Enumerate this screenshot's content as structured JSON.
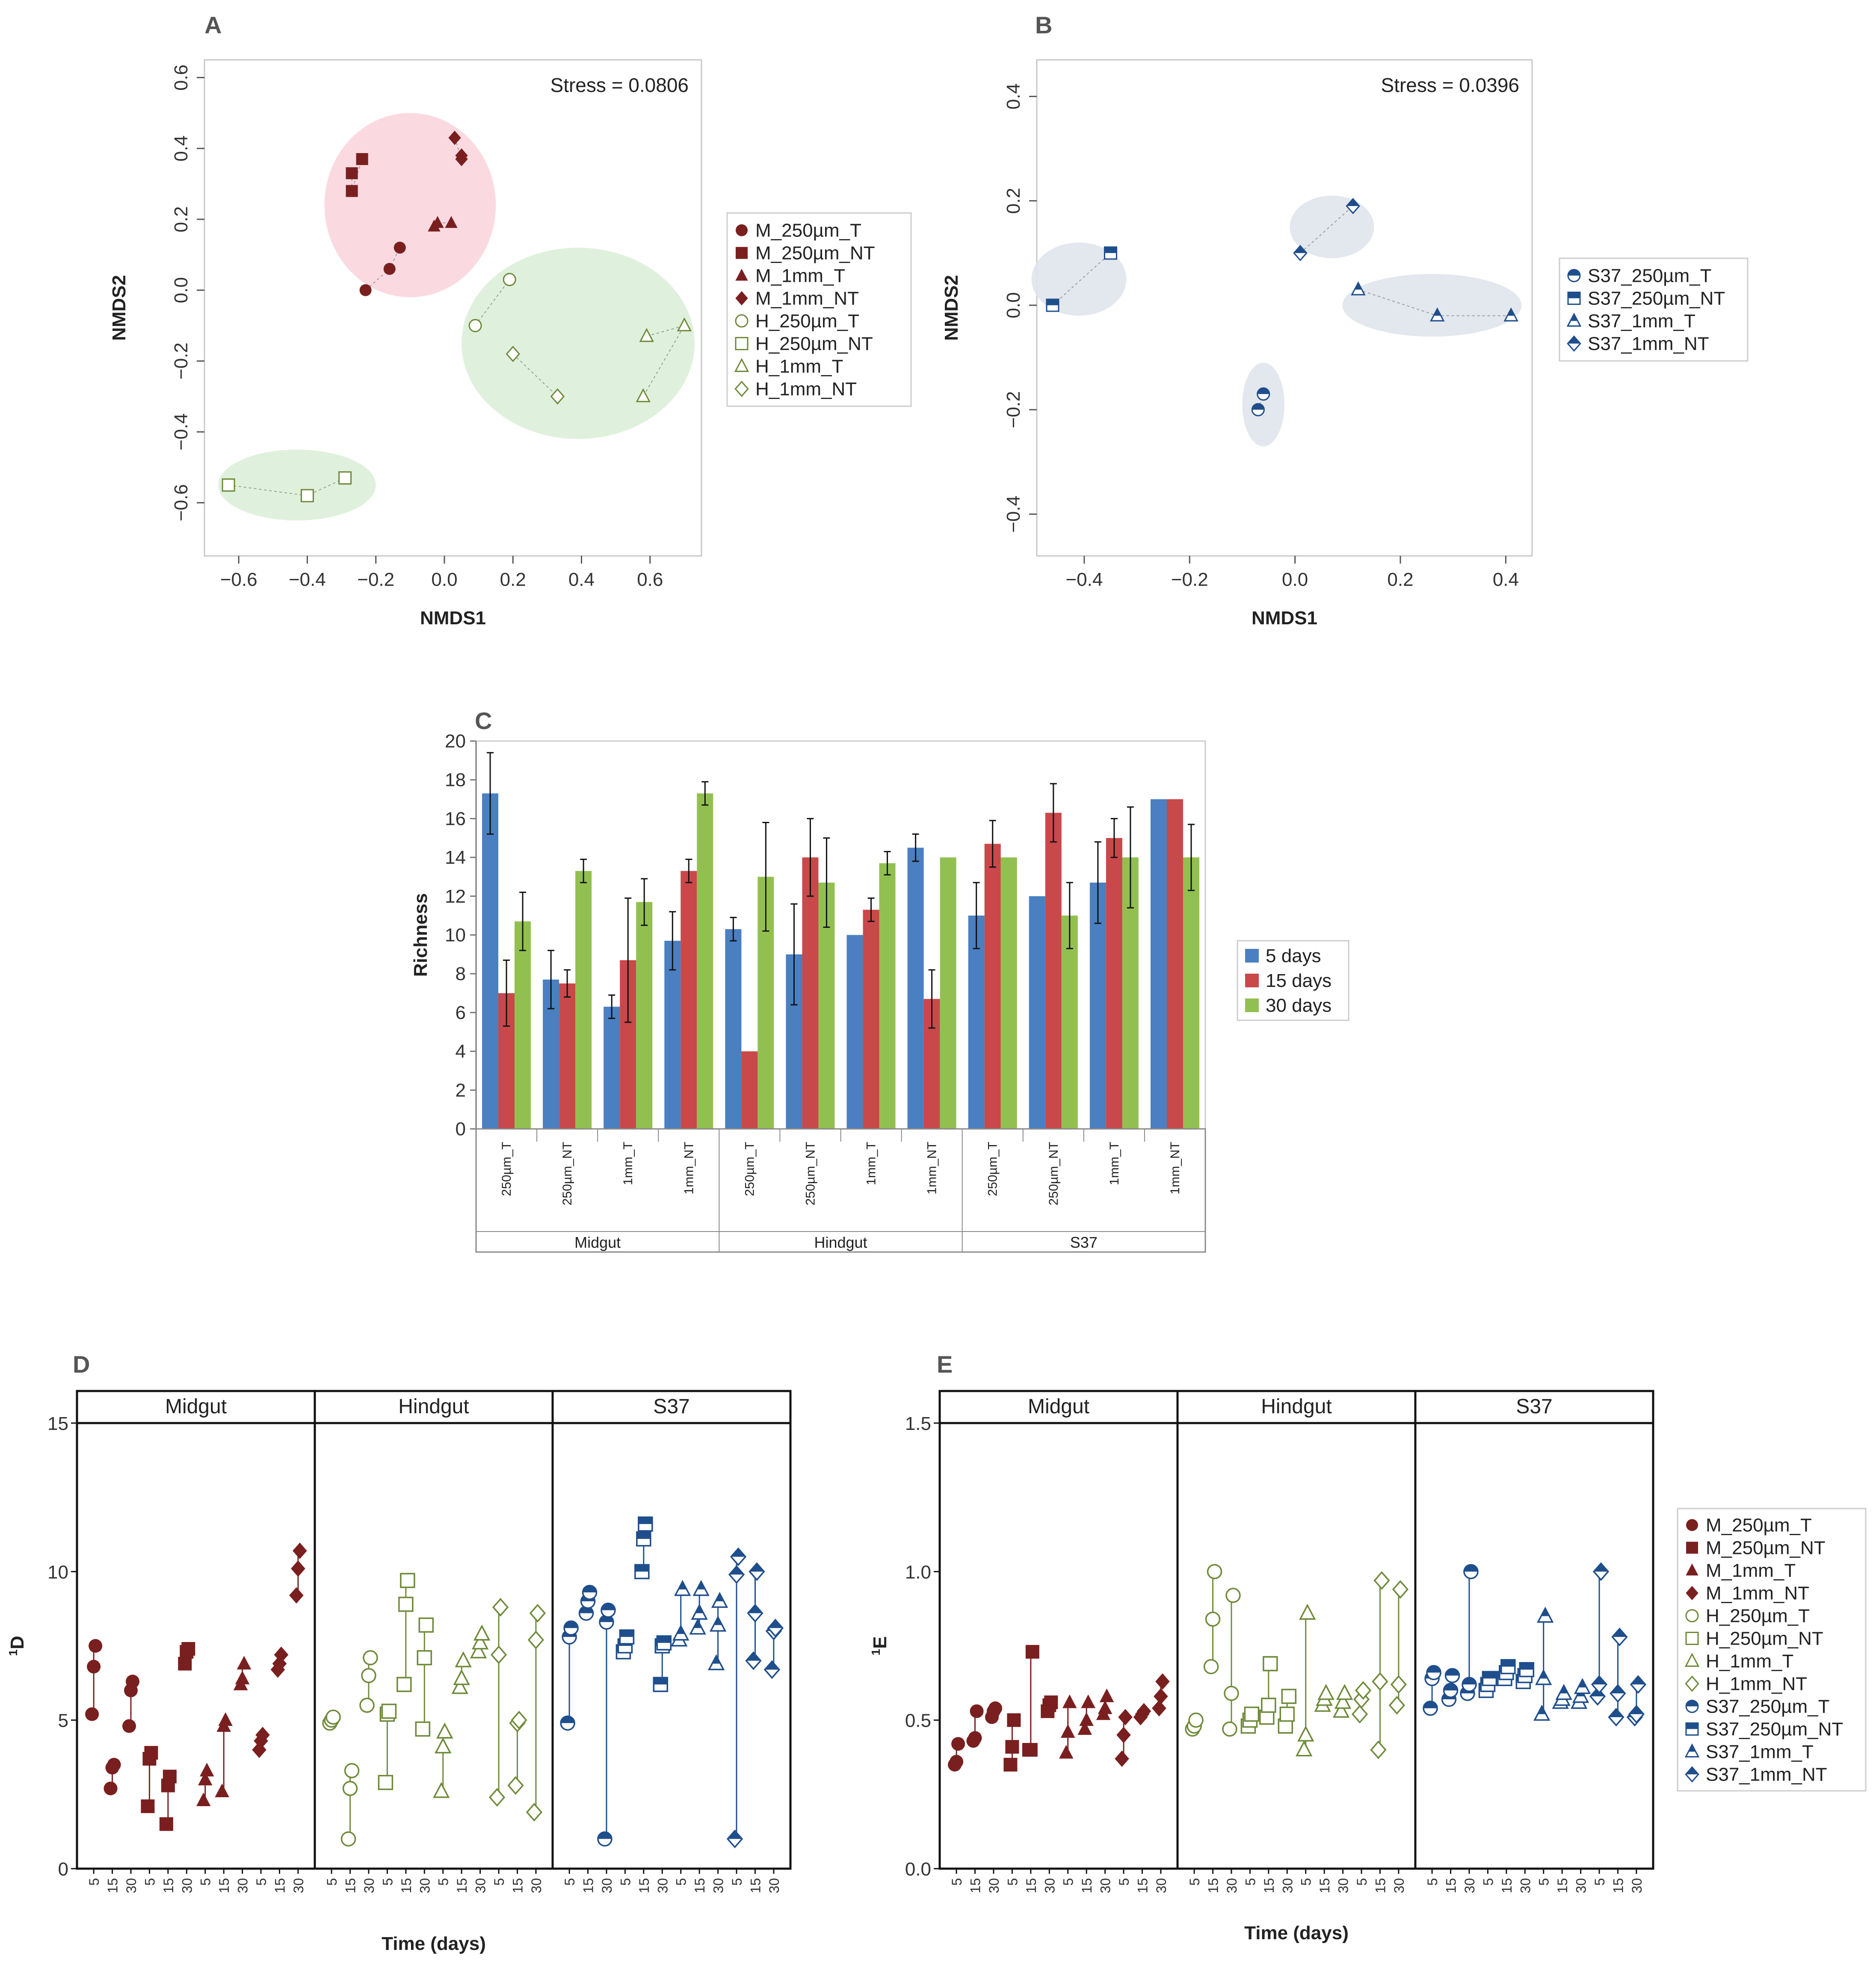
{
  "figure_letters": [
    "A",
    "B",
    "C",
    "D",
    "E"
  ],
  "chart_data": [
    {
      "id": "A",
      "type": "scatter",
      "title": "A",
      "xlabel": "NMDS1",
      "ylabel": "NMDS2",
      "xlim": [
        -0.7,
        0.75
      ],
      "ylim": [
        -0.75,
        0.65
      ],
      "xticks": [
        -0.6,
        -0.4,
        -0.2,
        0.0,
        0.2,
        0.4,
        0.6
      ],
      "yticks": [
        -0.6,
        -0.4,
        -0.2,
        0.0,
        0.2,
        0.4,
        0.6
      ],
      "annotation": "Stress =  0.0806",
      "legend": [
        "M_250µm_T",
        "M_250µm_NT",
        "M_1mm_T",
        "M_1mm_NT",
        "H_250µm_T",
        "H_250µm_NT",
        "H_1mm_T",
        "H_1mm_NT"
      ],
      "ellipses": [
        {
          "cx": -0.1,
          "cy": 0.24,
          "rx": 0.25,
          "ry": 0.26,
          "color": "#f9d6dd"
        },
        {
          "cx": 0.39,
          "cy": -0.15,
          "rx": 0.34,
          "ry": 0.27,
          "color": "#dcf0d8"
        },
        {
          "cx": -0.43,
          "cy": -0.55,
          "rx": 0.23,
          "ry": 0.1,
          "color": "#dcf0d8"
        }
      ],
      "series": [
        {
          "name": "M_250µm_T",
          "marker": "circle",
          "fill": true,
          "color": "#7a1f1f",
          "points": [
            [
              -0.23,
              0.0
            ],
            [
              -0.16,
              0.06
            ],
            [
              -0.13,
              0.12
            ]
          ]
        },
        {
          "name": "M_250µm_NT",
          "marker": "square",
          "fill": true,
          "color": "#7a1f1f",
          "points": [
            [
              -0.27,
              0.33
            ],
            [
              -0.27,
              0.28
            ],
            [
              -0.24,
              0.37
            ]
          ]
        },
        {
          "name": "M_1mm_T",
          "marker": "triangle",
          "fill": true,
          "color": "#7a1f1f",
          "points": [
            [
              -0.03,
              0.18
            ],
            [
              -0.02,
              0.19
            ],
            [
              0.02,
              0.19
            ]
          ]
        },
        {
          "name": "M_1mm_NT",
          "marker": "diamond",
          "fill": true,
          "color": "#7a1f1f",
          "points": [
            [
              0.03,
              0.43
            ],
            [
              0.05,
              0.37
            ],
            [
              0.05,
              0.38
            ]
          ]
        },
        {
          "name": "H_250µm_T",
          "marker": "circle",
          "fill": false,
          "color": "#6f8a3a",
          "points": [
            [
              0.09,
              -0.1
            ],
            [
              0.19,
              0.03
            ]
          ]
        },
        {
          "name": "H_250µm_NT",
          "marker": "square",
          "fill": false,
          "color": "#6f8a3a",
          "points": [
            [
              -0.63,
              -0.55
            ],
            [
              -0.4,
              -0.58
            ],
            [
              -0.29,
              -0.53
            ]
          ]
        },
        {
          "name": "H_1mm_T",
          "marker": "triangle",
          "fill": false,
          "color": "#6f8a3a",
          "points": [
            [
              0.59,
              -0.13
            ],
            [
              0.7,
              -0.1
            ],
            [
              0.58,
              -0.3
            ]
          ]
        },
        {
          "name": "H_1mm_NT",
          "marker": "diamond",
          "fill": false,
          "color": "#6f8a3a",
          "points": [
            [
              0.2,
              -0.18
            ],
            [
              0.33,
              -0.3
            ]
          ]
        }
      ]
    },
    {
      "id": "B",
      "type": "scatter",
      "title": "B",
      "xlabel": "NMDS1",
      "ylabel": "NMDS2",
      "xlim": [
        -0.49,
        0.45
      ],
      "ylim": [
        -0.48,
        0.47
      ],
      "xticks": [
        -0.4,
        -0.2,
        0.0,
        0.2,
        0.4
      ],
      "yticks": [
        -0.4,
        -0.2,
        0.0,
        0.2,
        0.4
      ],
      "annotation": "Stress =  0.0396",
      "legend": [
        "S37_250µm_T",
        "S37_250µm_NT",
        "S37_1mm_T",
        "S37_1mm_NT"
      ],
      "ellipses": [
        {
          "cx": -0.41,
          "cy": 0.05,
          "rx": 0.09,
          "ry": 0.07,
          "color": "#e0e4ec"
        },
        {
          "cx": 0.07,
          "cy": 0.15,
          "rx": 0.08,
          "ry": 0.06,
          "color": "#e0e4ec"
        },
        {
          "cx": 0.26,
          "cy": 0.0,
          "rx": 0.17,
          "ry": 0.06,
          "color": "#e0e4ec"
        },
        {
          "cx": -0.06,
          "cy": -0.19,
          "rx": 0.04,
          "ry": 0.08,
          "color": "#e0e4ec"
        }
      ],
      "series": [
        {
          "name": "S37_250µm_T",
          "marker": "half-circle",
          "color": "#1f4e8c",
          "points": [
            [
              -0.07,
              -0.2
            ],
            [
              -0.06,
              -0.17
            ]
          ]
        },
        {
          "name": "S37_250µm_NT",
          "marker": "half-square",
          "color": "#1f4e8c",
          "points": [
            [
              -0.46,
              0.0
            ],
            [
              -0.35,
              0.1
            ]
          ]
        },
        {
          "name": "S37_1mm_T",
          "marker": "half-triangle",
          "color": "#1f4e8c",
          "points": [
            [
              0.12,
              0.03
            ],
            [
              0.27,
              -0.02
            ],
            [
              0.41,
              -0.02
            ]
          ]
        },
        {
          "name": "S37_1mm_NT",
          "marker": "half-diamond",
          "color": "#1f4e8c",
          "points": [
            [
              0.01,
              0.1
            ],
            [
              0.11,
              0.19
            ]
          ]
        }
      ]
    },
    {
      "id": "C",
      "type": "bar",
      "title": "C",
      "ylabel": "Richness",
      "ylim": [
        0,
        20
      ],
      "yticks": [
        0,
        2,
        4,
        6,
        8,
        10,
        12,
        14,
        16,
        18,
        20
      ],
      "categories": [
        "250µm_T",
        "250µm_NT",
        "1mm_T",
        "1mm_NT",
        "250µm_T",
        "250µm_NT",
        "1mm_T",
        "1mm_NT",
        "250µm_T",
        "250µm_NT",
        "1mm_T",
        "1mm_NT"
      ],
      "groups": [
        "Midgut",
        "Hindgut",
        "S37"
      ],
      "series": [
        {
          "name": "5 days",
          "color": "#4a7fc1",
          "values": [
            17.3,
            7.7,
            6.3,
            9.7,
            10.3,
            9.0,
            10.0,
            14.5,
            11.0,
            12.0,
            12.7,
            17.0
          ],
          "errors": [
            2.1,
            1.5,
            0.6,
            1.5,
            0.6,
            2.6,
            0.0,
            0.7,
            1.7,
            0.0,
            2.1,
            0.0
          ]
        },
        {
          "name": "15 days",
          "color": "#c9484a",
          "values": [
            7.0,
            7.5,
            8.7,
            13.3,
            4.0,
            14.0,
            11.3,
            6.7,
            14.7,
            16.3,
            15.0,
            17.0
          ],
          "errors": [
            1.7,
            0.7,
            3.2,
            0.6,
            0.0,
            2.0,
            0.6,
            1.5,
            1.2,
            1.5,
            1.0,
            0.0
          ]
        },
        {
          "name": "30 days",
          "color": "#92c050",
          "values": [
            10.7,
            13.3,
            11.7,
            17.3,
            13.0,
            12.7,
            13.7,
            14.0,
            14.0,
            11.0,
            14.0,
            14.0
          ],
          "errors": [
            1.5,
            0.6,
            1.2,
            0.6,
            2.8,
            2.3,
            0.6,
            0.0,
            0.0,
            1.7,
            2.6,
            1.7
          ]
        }
      ],
      "legend": [
        "5 days",
        "15 days",
        "30 days"
      ]
    },
    {
      "id": "D",
      "type": "scatter",
      "title": "D",
      "ylabel_sup": "1",
      "ylabel": "D",
      "xlabel": "Time (days)",
      "ylim": [
        0,
        15
      ],
      "yticks": [
        0,
        5,
        10,
        15
      ],
      "facets": [
        "Midgut",
        "Hindgut",
        "S37"
      ],
      "time_ticks": [
        "5",
        "15",
        "30"
      ],
      "legend": [
        "M_250µm_T",
        "M_250µm_NT",
        "M_1mm_T",
        "M_1mm_NT",
        "H_250µm_T",
        "H_250µm_NT",
        "H_1mm_T",
        "H_1mm_NT",
        "S37_250µm_T",
        "S37_250µm_NT",
        "S37_1mm_T",
        "S37_1mm_NT"
      ],
      "groups": [
        {
          "facet": 0,
          "name": "M_250µm_T",
          "values": [
            [
              5.2,
              6.8,
              7.5
            ],
            [
              2.7,
              3.4,
              3.5
            ],
            [
              4.8,
              6.0,
              6.3
            ]
          ]
        },
        {
          "facet": 0,
          "name": "M_250µm_NT",
          "values": [
            [
              2.1,
              3.7,
              3.9
            ],
            [
              1.5,
              2.8,
              3.1
            ],
            [
              6.9,
              7.3,
              7.4
            ]
          ]
        },
        {
          "facet": 0,
          "name": "M_1mm_T",
          "values": [
            [
              2.3,
              3.0,
              3.3
            ],
            [
              2.6,
              4.8,
              5.0
            ],
            [
              6.2,
              6.4,
              6.9
            ]
          ]
        },
        {
          "facet": 0,
          "name": "M_1mm_NT",
          "values": [
            [
              4.0,
              4.3,
              4.5
            ],
            [
              6.7,
              6.9,
              7.2
            ],
            [
              9.2,
              10.1,
              10.7
            ]
          ]
        },
        {
          "facet": 1,
          "name": "H_250µm_T",
          "values": [
            [
              4.9,
              5.0,
              5.1
            ],
            [
              1.0,
              2.7,
              3.3
            ],
            [
              5.5,
              6.5,
              7.1
            ]
          ]
        },
        {
          "facet": 1,
          "name": "H_250µm_NT",
          "values": [
            [
              2.9,
              5.2,
              5.3
            ],
            [
              6.2,
              8.9,
              9.7
            ],
            [
              4.7,
              7.1,
              8.2
            ]
          ]
        },
        {
          "facet": 1,
          "name": "H_1mm_T",
          "values": [
            [
              2.6,
              4.1,
              4.6
            ],
            [
              6.1,
              6.4,
              7.0
            ],
            [
              7.3,
              7.6,
              7.9
            ]
          ]
        },
        {
          "facet": 1,
          "name": "H_1mm_NT",
          "values": [
            [
              2.4,
              7.2,
              8.8
            ],
            [
              2.8,
              4.9,
              5.0
            ],
            [
              1.9,
              7.7,
              8.6
            ]
          ]
        },
        {
          "facet": 2,
          "name": "S37_250µm_T",
          "values": [
            [
              4.9,
              7.8,
              8.1
            ],
            [
              8.6,
              9.0,
              9.3
            ],
            [
              1.0,
              8.3,
              8.7
            ]
          ]
        },
        {
          "facet": 2,
          "name": "S37_250µm_NT",
          "values": [
            [
              7.3,
              7.5,
              7.8
            ],
            [
              10.0,
              11.1,
              11.6
            ],
            [
              6.2,
              7.5,
              7.6
            ]
          ]
        },
        {
          "facet": 2,
          "name": "S37_1mm_T",
          "values": [
            [
              7.7,
              7.9,
              9.4
            ],
            [
              8.1,
              8.6,
              9.4
            ],
            [
              6.9,
              8.2,
              9.0
            ]
          ]
        },
        {
          "facet": 2,
          "name": "S37_1mm_NT",
          "values": [
            [
              1.0,
              9.9,
              10.5
            ],
            [
              7.0,
              8.6,
              10.0
            ],
            [
              6.7,
              8.0,
              8.1
            ]
          ]
        }
      ]
    },
    {
      "id": "E",
      "type": "scatter",
      "title": "E",
      "ylabel_sup": "1",
      "ylabel": "E",
      "xlabel": "Time (days)",
      "ylim": [
        0,
        1.5
      ],
      "yticks": [
        0.0,
        0.5,
        1.0,
        1.5
      ],
      "facets": [
        "Midgut",
        "Hindgut",
        "S37"
      ],
      "time_ticks": [
        "5",
        "15",
        "30"
      ],
      "groups": [
        {
          "facet": 0,
          "name": "M_250µm_T",
          "values": [
            [
              0.35,
              0.36,
              0.42
            ],
            [
              0.43,
              0.44,
              0.53
            ],
            [
              0.51,
              0.53,
              0.54
            ]
          ]
        },
        {
          "facet": 0,
          "name": "M_250µm_NT",
          "values": [
            [
              0.35,
              0.41,
              0.5
            ],
            [
              0.4,
              0.4,
              0.73
            ],
            [
              0.53,
              0.55,
              0.56
            ]
          ]
        },
        {
          "facet": 0,
          "name": "M_1mm_T",
          "values": [
            [
              0.39,
              0.46,
              0.56
            ],
            [
              0.47,
              0.5,
              0.56
            ],
            [
              0.52,
              0.54,
              0.58
            ]
          ]
        },
        {
          "facet": 0,
          "name": "M_1mm_NT",
          "values": [
            [
              0.37,
              0.45,
              0.51
            ],
            [
              0.51,
              0.52,
              0.53
            ],
            [
              0.54,
              0.58,
              0.63
            ]
          ]
        },
        {
          "facet": 1,
          "name": "H_250µm_T",
          "values": [
            [
              0.47,
              0.48,
              0.5
            ],
            [
              0.68,
              0.84,
              1.0
            ],
            [
              0.47,
              0.59,
              0.92
            ]
          ]
        },
        {
          "facet": 1,
          "name": "H_250µm_NT",
          "values": [
            [
              0.48,
              0.5,
              0.52
            ],
            [
              0.51,
              0.55,
              0.69
            ],
            [
              0.48,
              0.52,
              0.58
            ]
          ]
        },
        {
          "facet": 1,
          "name": "H_1mm_T",
          "values": [
            [
              0.4,
              0.45,
              0.86
            ],
            [
              0.55,
              0.57,
              0.59
            ],
            [
              0.53,
              0.56,
              0.59
            ]
          ]
        },
        {
          "facet": 1,
          "name": "H_1mm_NT",
          "values": [
            [
              0.52,
              0.57,
              0.6
            ],
            [
              0.4,
              0.63,
              0.97
            ],
            [
              0.55,
              0.62,
              0.94
            ]
          ]
        },
        {
          "facet": 2,
          "name": "S37_250µm_T",
          "values": [
            [
              0.54,
              0.64,
              0.66
            ],
            [
              0.57,
              0.6,
              0.65
            ],
            [
              0.59,
              0.62,
              1.0
            ]
          ]
        },
        {
          "facet": 2,
          "name": "S37_250µm_NT",
          "values": [
            [
              0.6,
              0.62,
              0.64
            ],
            [
              0.64,
              0.66,
              0.68
            ],
            [
              0.63,
              0.65,
              0.67
            ]
          ]
        },
        {
          "facet": 2,
          "name": "S37_1mm_T",
          "values": [
            [
              0.52,
              0.64,
              0.85
            ],
            [
              0.56,
              0.57,
              0.59
            ],
            [
              0.56,
              0.58,
              0.61
            ]
          ]
        },
        {
          "facet": 2,
          "name": "S37_1mm_NT",
          "values": [
            [
              0.58,
              0.62,
              1.0
            ],
            [
              0.51,
              0.59,
              0.78
            ],
            [
              0.51,
              0.52,
              0.62
            ]
          ]
        }
      ]
    }
  ]
}
